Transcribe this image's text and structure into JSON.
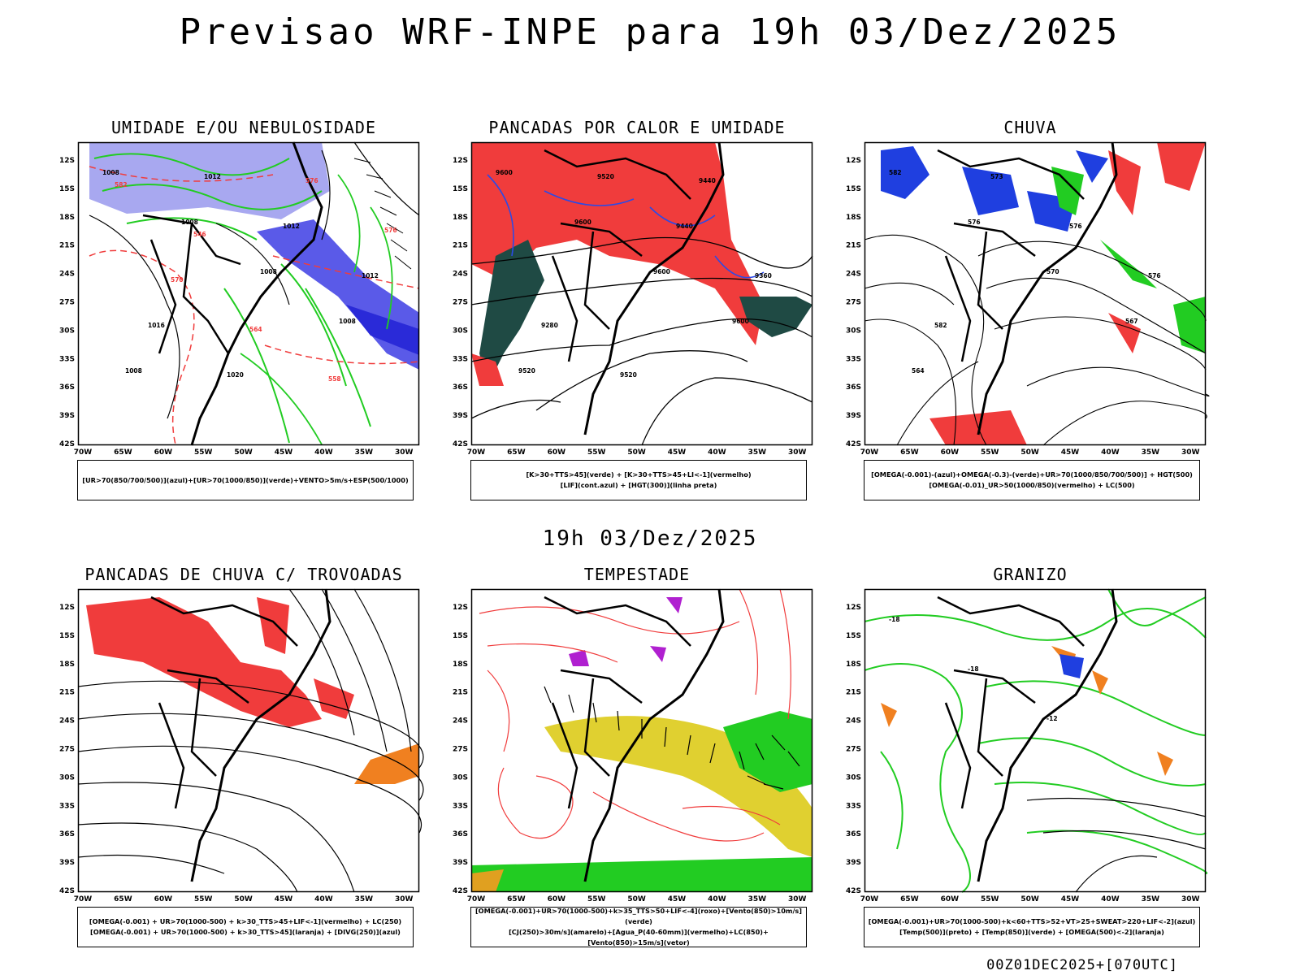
{
  "header": {
    "title": "Previsao WRF-INPE  para 19h 03/Dez/2025"
  },
  "middle": {
    "date": "19h 03/Dez/2025"
  },
  "footer": {
    "run": "00Z01DEC2025+[070UTC]"
  },
  "axes": {
    "lat_labels": [
      "12S",
      "15S",
      "18S",
      "21S",
      "24S",
      "27S",
      "30S",
      "33S",
      "36S",
      "39S",
      "42S"
    ],
    "lon_labels": [
      "70W",
      "65W",
      "60W",
      "55W",
      "50W",
      "45W",
      "40W",
      "35W",
      "30W"
    ]
  },
  "colors": {
    "blue": "#1f3fe0",
    "lavender": "#a8a8f0",
    "green": "#22cc22",
    "red": "#f03c3c",
    "darkteal": "#1f4a44",
    "yellow": "#e0d030",
    "orange": "#f08020",
    "purple": "#b020d0"
  },
  "panels": [
    {
      "id": "umidade",
      "title": "UMIDADE E/OU NEBULOSIDADE",
      "legend": [
        "[UR>70(850/700/500)](azul)+[UR>70(1000/850)](verde)+VENTO>5m/s+ESP(500/1000)"
      ],
      "contour_labels": [
        "1008",
        "1008",
        "1008",
        "1008",
        "1008",
        "1012",
        "1012",
        "1012",
        "1016",
        "1020",
        "576",
        "576",
        "570",
        "564",
        "558",
        "582",
        "546"
      ]
    },
    {
      "id": "pancadas-calor",
      "title": "PANCADAS POR CALOR E UMIDADE",
      "legend": [
        "[K>30+TTS>45](verde)  +  [K>30+TTS>45+LI<-1](vermelho)",
        "[LIF](cont.azul)  +  [HGT(300)](linha preta)"
      ],
      "contour_labels": [
        "9600",
        "9600",
        "9600",
        "9600",
        "9520",
        "9520",
        "9440",
        "9360",
        "9280",
        "9520",
        "9440"
      ]
    },
    {
      "id": "chuva",
      "title": "CHUVA",
      "legend": [
        "[OMEGA(-0.001)-(azul)+OMEGA(-0.3)-(verde)+UR>70(1000/850/700/500)]  +  HGT(500)",
        "[OMEGA(-0.01)_UR>50(1000/850)(vermelho)  +  LC(500)"
      ],
      "contour_labels": [
        "582",
        "576",
        "570",
        "567",
        "564",
        "573",
        "576",
        "576",
        "582"
      ]
    },
    {
      "id": "pancadas-trovoadas",
      "title": "PANCADAS DE CHUVA C/ TROVOADAS",
      "legend": [
        "[OMEGA(-0.001)  +  UR>70(1000-500)  +  k>30_TTS>45+LIF<-1](vermelho)  +  LC(250)",
        "[OMEGA(-0.001)  +  UR>70(1000-500)  +  k>30_TTS>45](laranja)  +  [DIVG(250)](azul)"
      ],
      "contour_labels": []
    },
    {
      "id": "tempestade",
      "title": "TEMPESTADE",
      "legend": [
        "[OMEGA(-0.001)+UR>70(1000-500)+k>35_TTS>50+LIF<-4](roxo)+[Vento(850)>10m/s](verde)",
        "[CJ(250)>30m/s](amarelo)+[Agua_P(40-60mm)](vermelho)+LC(850)+[Vento(850)>15m/s](vetor)"
      ],
      "contour_labels": []
    },
    {
      "id": "granizo",
      "title": "GRANIZO",
      "legend": [
        "[OMEGA(-0.001)+UR>70(1000-500)+k<60+TTS>52+VT>25+SWEAT>220+LIF<-2](azul)",
        "[Temp(500)](preto)  +  [Temp(850)](verde)  +  [OMEGA(500)<-2](laranja)"
      ],
      "contour_labels": [
        "-18",
        "-18",
        "-12"
      ]
    }
  ]
}
